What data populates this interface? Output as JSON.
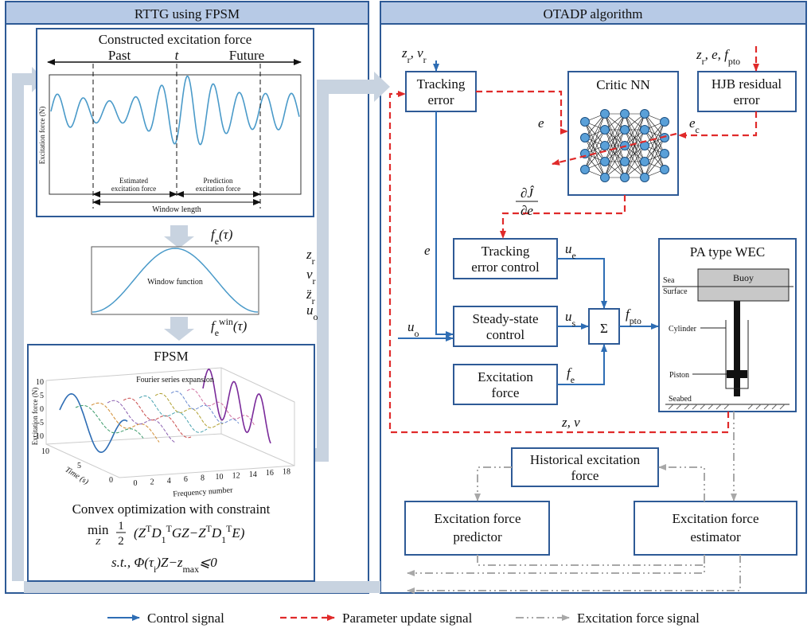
{
  "rttg": {
    "title": "RTTG using FPSM",
    "excitation_plot": {
      "title": "Constructed excitation force",
      "past": "Past",
      "now": "t",
      "future": "Future",
      "y_label": "Excitation force (N)",
      "estimated": [
        "Estimated",
        "excitation force"
      ],
      "prediction": [
        "Prediction",
        "excitation force"
      ],
      "window_length": "Window length"
    },
    "fe_label": [
      {
        "t": "f"
      },
      {
        "sub": "e"
      },
      {
        "t": "(τ)"
      }
    ],
    "window_plot": {
      "label": "Window function"
    },
    "fe_win_label": [
      {
        "t": "f"
      },
      {
        "sub": "e"
      },
      {
        "sup": "win"
      },
      {
        "t": "(τ)"
      }
    ],
    "signals": [
      [
        {
          "t": "z"
        },
        {
          "sub": "r"
        }
      ],
      [
        {
          "t": "v"
        },
        {
          "sub": "r"
        }
      ],
      [
        {
          "t": "z̈"
        },
        {
          "sub": "r"
        }
      ],
      [
        {
          "t": "u"
        },
        {
          "sub": "o"
        }
      ]
    ],
    "fpsm": {
      "title": "FPSM",
      "subtitle": "Fourier series expansion",
      "y_label": "Excitation force (N)",
      "y_ticks": [
        "10",
        "5",
        "0",
        "-5",
        "-10"
      ],
      "time_label": "Time (s)",
      "time_ticks": [
        "10",
        "5",
        "0"
      ],
      "freq_label": "Frequency number",
      "freq_ticks": [
        "0",
        "2",
        "4",
        "6",
        "8",
        "10",
        "12",
        "14",
        "16",
        "18"
      ]
    },
    "optimization": {
      "title": "Convex optimization with constraint",
      "min": "min",
      "min_var": "Z",
      "frac": [
        "1",
        "2"
      ],
      "objective": [
        {
          "t": "(Z"
        },
        {
          "sup": "T"
        },
        {
          "t": "D"
        },
        {
          "sub": "1"
        },
        {
          "sup": "T"
        },
        {
          "t": "GZ−Z"
        },
        {
          "sup": "T"
        },
        {
          "t": "D"
        },
        {
          "sub": "1"
        },
        {
          "sup": "T"
        },
        {
          "t": "E)"
        }
      ],
      "constraint": [
        {
          "t": "s.t., Φ(τ"
        },
        {
          "sub": "i"
        },
        {
          "t": ")Z−z"
        },
        {
          "sub": "max"
        },
        {
          "t": "⩽0"
        }
      ]
    }
  },
  "otadp": {
    "title": "OTADP algorithm",
    "tracking_error": [
      "Tracking",
      "error"
    ],
    "critic": "Critic NN",
    "hjb": [
      "HJB residual",
      "error"
    ],
    "tracking_control": [
      "Tracking",
      "error control"
    ],
    "steady_control": [
      "Steady-state",
      "control"
    ],
    "sigma": "Σ",
    "excitation": [
      "Excitation",
      "force"
    ],
    "wec": {
      "title": "PA type WEC",
      "buoy": "Buoy",
      "sea_surface": [
        "Sea",
        "Surface"
      ],
      "cylinder": "Cylinder",
      "piston": "Piston",
      "seabed": "Seabed"
    },
    "historical": [
      "Historical excitation",
      "force"
    ],
    "predictor": [
      "Excitation force",
      "predictor"
    ],
    "estimator": [
      "Excitation force",
      "estimator"
    ],
    "zr_vr": [
      {
        "t": "z"
      },
      {
        "sub": "r"
      },
      {
        "t": ", v"
      },
      {
        "sub": "r"
      }
    ],
    "hjb_inputs": [
      {
        "t": "z"
      },
      {
        "sub": "r"
      },
      {
        "t": ", e, f"
      },
      {
        "sub": "pto"
      }
    ],
    "e_critic": "e",
    "ec": [
      {
        "t": "e"
      },
      {
        "sub": "c"
      }
    ],
    "dj_de": [
      "∂Ĵ",
      "∂e"
    ],
    "e_left": "e",
    "ue": [
      {
        "t": "u"
      },
      {
        "sub": "e"
      }
    ],
    "us": [
      {
        "t": "u"
      },
      {
        "sub": "s"
      }
    ],
    "uo": [
      {
        "t": "u"
      },
      {
        "sub": "o"
      }
    ],
    "fe": [
      {
        "t": "f"
      },
      {
        "sub": "e"
      }
    ],
    "fpto": [
      {
        "t": "f"
      },
      {
        "sub": "pto"
      }
    ],
    "zv": "z, v"
  },
  "legend": [
    "Control signal",
    "Parameter update signal",
    "Excitation force signal"
  ]
}
